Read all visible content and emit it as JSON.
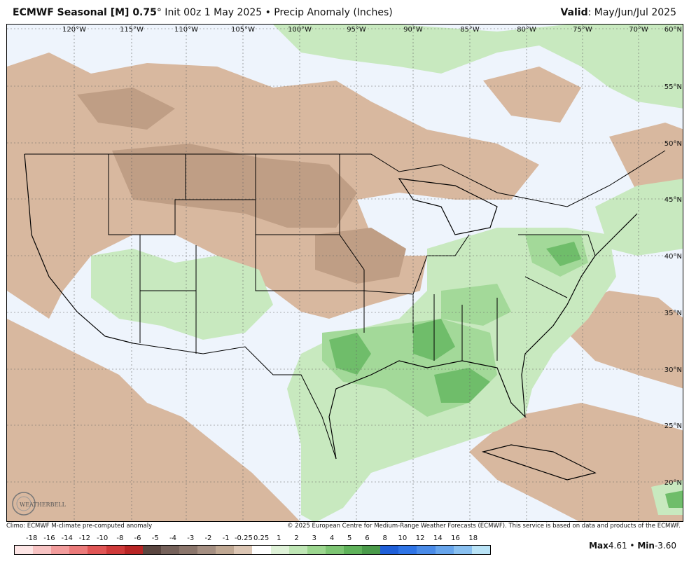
{
  "header": {
    "title_bold": "ECMWF Seasonal [M] 0.75",
    "title_degree": "°",
    "title_rest": " Init 00z 1 May 2025 • Precip Anomaly (Inches)",
    "valid_label": "Valid",
    "valid_value": ": May/Jun/Jul 2025"
  },
  "map": {
    "longitude_labels": [
      "120°W",
      "115°W",
      "110°W",
      "105°W",
      "100°W",
      "95°W",
      "90°W",
      "85°W",
      "80°W",
      "75°W",
      "70°W"
    ],
    "latitude_labels": [
      "60°N",
      "55°N",
      "50°N",
      "45°N",
      "40°N",
      "35°N",
      "30°N",
      "25°N",
      "20°N"
    ],
    "logo_text": "WEATHERBELL",
    "colors": {
      "dry_light": "#d8b89f",
      "dry_medium": "#bf9e85",
      "wet_light": "#c8e9bf",
      "wet_medium": "#a3d999",
      "wet_strong": "#6fbd6a",
      "neutral": "#eef4fc"
    }
  },
  "footer": {
    "climo": "Climo: ECMWF M-climate pre-computed anomaly",
    "copyright": "© 2025 European Centre for Medium-Range Weather Forecasts (ECMWF). This service is based on data and products of the ECMWF."
  },
  "legend": {
    "labels": [
      "-18",
      "-16",
      "-14",
      "-12",
      "-10",
      "-8",
      "-6",
      "-5",
      "-4",
      "-3",
      "-2",
      "-1",
      "-0.25",
      "0.25",
      "1",
      "2",
      "3",
      "4",
      "5",
      "6",
      "8",
      "10",
      "12",
      "14",
      "16",
      "18"
    ],
    "colors": [
      "#fde5e5",
      "#f7c3c3",
      "#f29c9c",
      "#eb7a7a",
      "#e05555",
      "#cf3a3a",
      "#b82525",
      "#5a4640",
      "#75615a",
      "#8b766c",
      "#a58f82",
      "#c0a893",
      "#dcc6b4",
      "#ffffff",
      "#dff2d8",
      "#bfe6b5",
      "#9cd68f",
      "#7dc573",
      "#5fb25a",
      "#4a9a4a",
      "#1f5fd8",
      "#2f74e6",
      "#4a8be8",
      "#67a5ec",
      "#89c0f0",
      "#b9e3f6"
    ]
  },
  "stats": {
    "max_label": "Max",
    "max_value": "4.61",
    "separator": " • ",
    "min_label": "Min",
    "min_value": "-3.60"
  }
}
